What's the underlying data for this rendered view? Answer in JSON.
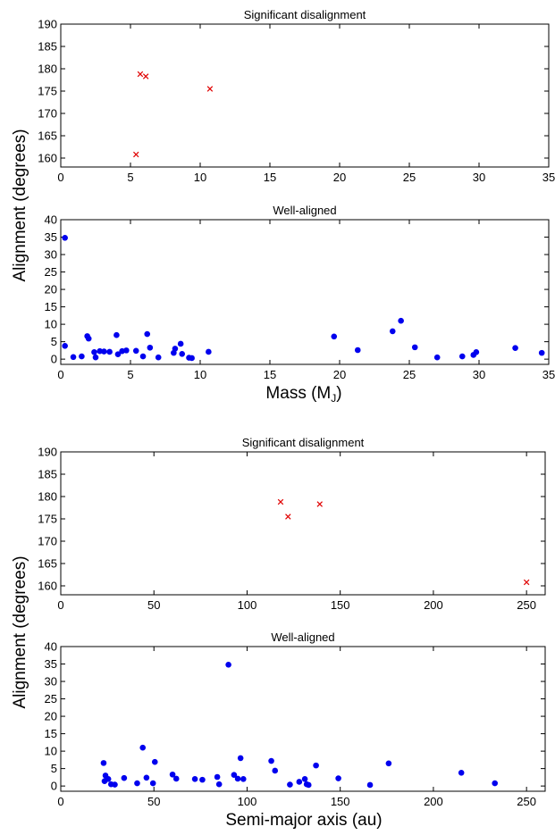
{
  "chart_data": [
    {
      "type": "scatter",
      "title": "Significant disalignment",
      "xlabel": "",
      "ylabel": "",
      "xlim": [
        0,
        35
      ],
      "ylim": [
        158,
        190
      ],
      "xticks": [
        0,
        5,
        10,
        15,
        20,
        25,
        30,
        35
      ],
      "yticks": [
        160,
        165,
        170,
        175,
        180,
        185,
        190
      ],
      "marker": "x",
      "color": "#e00000",
      "series": [
        {
          "x": [
            5.4,
            5.7,
            6.1,
            10.7
          ],
          "y": [
            160.8,
            178.8,
            178.3,
            175.5
          ]
        }
      ]
    },
    {
      "type": "scatter",
      "title": "Well-aligned",
      "xlabel": "",
      "ylabel": "",
      "xlim": [
        0,
        35
      ],
      "ylim": [
        -1.5,
        40
      ],
      "xticks": [
        0,
        5,
        10,
        15,
        20,
        25,
        30,
        35
      ],
      "yticks": [
        0,
        5,
        10,
        15,
        20,
        25,
        30,
        35,
        40
      ],
      "marker": "o",
      "color": "#0000ee",
      "series": [
        {
          "x": [
            0.3,
            0.3,
            0.9,
            1.5,
            1.9,
            2.0,
            2.4,
            2.5,
            2.8,
            3.1,
            3.5,
            4.0,
            4.1,
            4.4,
            4.7,
            5.4,
            5.9,
            6.2,
            6.4,
            7.0,
            8.1,
            8.2,
            8.6,
            8.7,
            9.2,
            9.4,
            10.6,
            19.6,
            21.3,
            23.8,
            24.4,
            25.4,
            27.0,
            28.8,
            29.6,
            29.8,
            32.6,
            34.5
          ],
          "y": [
            34.8,
            3.8,
            0.6,
            0.8,
            6.6,
            5.9,
            2.0,
            0.5,
            2.3,
            2.2,
            2.1,
            6.9,
            1.4,
            2.3,
            2.5,
            2.4,
            0.8,
            7.2,
            3.3,
            0.5,
            1.8,
            3.0,
            4.4,
            1.5,
            0.4,
            0.3,
            2.1,
            6.5,
            2.6,
            8.0,
            11.0,
            3.4,
            0.5,
            0.8,
            1.2,
            2.0,
            3.2,
            1.8
          ]
        }
      ]
    },
    {
      "type": "scatter",
      "title": "Significant disalignment",
      "xlabel": "",
      "ylabel": "",
      "xlim": [
        0,
        260
      ],
      "ylim": [
        158,
        190
      ],
      "xticks": [
        0,
        50,
        100,
        150,
        200,
        250
      ],
      "yticks": [
        160,
        165,
        170,
        175,
        180,
        185,
        190
      ],
      "marker": "x",
      "color": "#e00000",
      "series": [
        {
          "x": [
            118,
            122,
            139,
            250
          ],
          "y": [
            178.8,
            175.5,
            178.3,
            160.8
          ]
        }
      ]
    },
    {
      "type": "scatter",
      "title": "Well-aligned",
      "xlabel": "",
      "ylabel": "",
      "xlim": [
        0,
        260
      ],
      "ylim": [
        -1.5,
        40
      ],
      "xticks": [
        0,
        50,
        100,
        150,
        200,
        250
      ],
      "yticks": [
        0,
        5,
        10,
        15,
        20,
        25,
        30,
        35,
        40
      ],
      "marker": "o",
      "color": "#0000ee",
      "series": [
        {
          "x": [
            23,
            23.5,
            24,
            25.5,
            27,
            29,
            34,
            41,
            44,
            46,
            49.5,
            50.5,
            60,
            62,
            72,
            76,
            84,
            85,
            90,
            93,
            95,
            96.5,
            98,
            113,
            115,
            123,
            128,
            131,
            132,
            133,
            137,
            149,
            166,
            176,
            215,
            233
          ],
          "y": [
            6.6,
            1.4,
            3.0,
            2.0,
            0.5,
            0.4,
            2.3,
            0.8,
            11.0,
            2.4,
            0.8,
            6.9,
            3.3,
            2.1,
            2.0,
            1.8,
            2.6,
            0.5,
            34.8,
            3.2,
            2.1,
            8.0,
            2.0,
            7.2,
            4.4,
            0.4,
            1.2,
            2.0,
            0.5,
            0.3,
            5.9,
            2.2,
            0.3,
            6.5,
            3.8,
            0.8
          ]
        }
      ]
    }
  ],
  "figure_labels": {
    "top_ylabel": "Alignment (degrees)",
    "top_xlabel_main": "Mass (M",
    "top_xlabel_sub": "J",
    "top_xlabel_close": ")",
    "bottom_ylabel": "Alignment (degrees)",
    "bottom_xlabel": "Semi-major axis (au)"
  }
}
